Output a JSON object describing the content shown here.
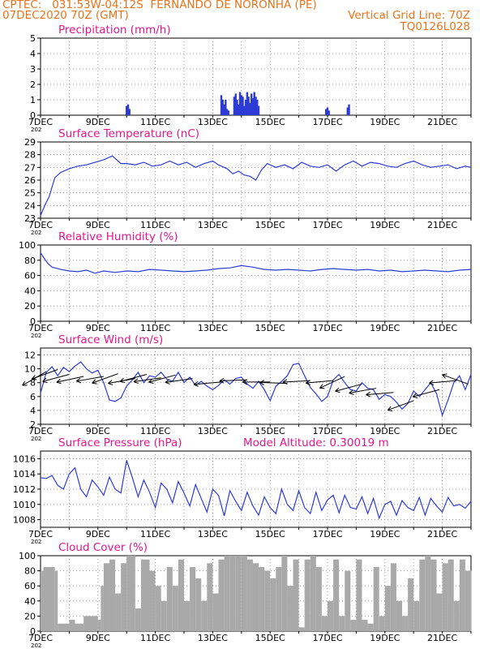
{
  "header": {
    "line1": "CPTEC:   031:53W-04:12S  FERNANDO DE NORONHA (PE)",
    "line2": "07DEC2020 70Z (GMT)",
    "grid_note": "Vertical Grid Line: 70Z",
    "code": "TQ0126L028"
  },
  "x_axis": {
    "start_label": "7DEC",
    "start_sub": "202",
    "day_start": 7,
    "day_end": 22,
    "tick_labels": [
      "9DEC",
      "11DEC",
      "13DEC",
      "15DEC",
      "17DEC",
      "19DEC",
      "21DEC"
    ],
    "tick_days": [
      9,
      11,
      13,
      15,
      17,
      19,
      21
    ]
  },
  "colors": {
    "line": "#2d3bd6",
    "title": "#e3168c",
    "header": "#e8731a",
    "cloud": "#a9a9a9",
    "grid": "#8a8a8a",
    "arrow": "#000000"
  },
  "chart_data": [
    {
      "type": "bar",
      "title": "Precipitation (mm/h)",
      "ylim": [
        0,
        5
      ],
      "yticks": [
        "0",
        "1",
        "2",
        "3",
        "4",
        "5"
      ],
      "x": [
        10.0,
        10.05,
        10.1,
        13.3,
        13.35,
        13.4,
        13.45,
        13.5,
        13.55,
        13.75,
        13.8,
        13.85,
        13.9,
        13.95,
        14.0,
        14.05,
        14.1,
        14.15,
        14.2,
        14.25,
        14.3,
        14.35,
        14.4,
        14.45,
        14.5,
        14.55,
        14.6,
        16.95,
        17.0,
        17.05,
        17.7,
        17.75
      ],
      "values": [
        0.6,
        0.7,
        0.4,
        1.3,
        1.0,
        0.7,
        1.0,
        0.4,
        0.3,
        1.2,
        1.4,
        1.0,
        0.7,
        1.5,
        1.3,
        1.2,
        0.6,
        1.0,
        1.5,
        1.2,
        0.8,
        1.4,
        1.1,
        1.5,
        1.2,
        1.0,
        0.6,
        0.4,
        0.5,
        0.3,
        0.5,
        0.7
      ]
    },
    {
      "type": "line",
      "title": "Surface Temperature (nC)",
      "ylim": [
        23,
        29
      ],
      "yticks": [
        "23",
        "24",
        "25",
        "26",
        "27",
        "28",
        "29"
      ],
      "x": [
        7.0,
        7.15,
        7.3,
        7.5,
        7.7,
        8.0,
        8.3,
        8.6,
        8.9,
        9.2,
        9.5,
        9.8,
        10.0,
        10.3,
        10.6,
        10.9,
        11.2,
        11.5,
        11.8,
        12.1,
        12.4,
        12.7,
        13.0,
        13.2,
        13.5,
        13.7,
        13.9,
        14.1,
        14.3,
        14.5,
        14.7,
        14.9,
        15.2,
        15.5,
        15.8,
        16.1,
        16.4,
        16.7,
        17.0,
        17.3,
        17.6,
        17.9,
        18.2,
        18.5,
        18.8,
        19.1,
        19.4,
        19.7,
        20.0,
        20.3,
        20.6,
        20.9,
        21.2,
        21.5,
        21.8,
        22.0
      ],
      "values": [
        23.2,
        24.0,
        24.7,
        26.2,
        26.6,
        26.9,
        27.1,
        27.2,
        27.4,
        27.6,
        27.9,
        27.3,
        27.3,
        27.2,
        27.4,
        27.1,
        27.2,
        27.5,
        27.2,
        27.4,
        27.0,
        27.3,
        27.5,
        27.2,
        26.9,
        26.5,
        26.7,
        26.4,
        26.3,
        26.0,
        26.8,
        27.3,
        27.0,
        27.2,
        26.9,
        27.4,
        27.1,
        27.0,
        27.2,
        26.7,
        27.2,
        27.5,
        27.1,
        27.4,
        27.3,
        27.1,
        27.0,
        27.3,
        27.5,
        27.2,
        27.0,
        27.1,
        27.2,
        26.9,
        27.1,
        27.0
      ]
    },
    {
      "type": "line",
      "title": "Relative Humidity (%)",
      "ylim": [
        0,
        100
      ],
      "yticks": [
        "0",
        "20",
        "40",
        "60",
        "80",
        "100"
      ],
      "x": [
        7.0,
        7.1,
        7.25,
        7.4,
        7.7,
        8.0,
        8.3,
        8.6,
        8.9,
        9.2,
        9.6,
        10.0,
        10.4,
        10.8,
        11.2,
        11.6,
        12.0,
        12.4,
        12.8,
        13.2,
        13.6,
        14.0,
        14.4,
        14.8,
        15.2,
        15.6,
        16.0,
        16.4,
        16.8,
        17.2,
        17.6,
        18.0,
        18.4,
        18.8,
        19.2,
        19.6,
        20.0,
        20.4,
        20.8,
        21.2,
        21.6,
        22.0
      ],
      "values": [
        90,
        84,
        76,
        71,
        68,
        66,
        65,
        67,
        63,
        66,
        64,
        66,
        65,
        68,
        67,
        66,
        65,
        66,
        67,
        69,
        70,
        73,
        71,
        68,
        67,
        68,
        67,
        66,
        68,
        69,
        68,
        67,
        68,
        66,
        67,
        65,
        66,
        67,
        66,
        65,
        67,
        68
      ]
    },
    {
      "type": "line",
      "title": "Surface Wind (m/s)",
      "ylim": [
        2,
        13
      ],
      "yticks": [
        "2",
        "4",
        "6",
        "8",
        "10",
        "12"
      ],
      "x": [
        7.0,
        7.2,
        7.4,
        7.6,
        7.8,
        8.0,
        8.2,
        8.4,
        8.6,
        8.8,
        9.0,
        9.2,
        9.4,
        9.6,
        9.8,
        10.0,
        10.2,
        10.4,
        10.6,
        10.8,
        11.0,
        11.2,
        11.4,
        11.6,
        11.8,
        12.0,
        12.2,
        12.4,
        12.6,
        12.8,
        13.0,
        13.2,
        13.4,
        13.6,
        13.8,
        14.0,
        14.2,
        14.4,
        14.6,
        14.8,
        15.0,
        15.2,
        15.4,
        15.6,
        15.8,
        16.0,
        16.2,
        16.4,
        16.6,
        16.8,
        17.0,
        17.2,
        17.4,
        17.6,
        17.8,
        18.0,
        18.2,
        18.4,
        18.6,
        18.8,
        19.0,
        19.2,
        19.4,
        19.6,
        19.8,
        20.0,
        20.2,
        20.4,
        20.6,
        20.8,
        21.0,
        21.2,
        21.4,
        21.6,
        21.8,
        22.0
      ],
      "values": [
        6.5,
        9.5,
        10.3,
        9.0,
        10.2,
        9.6,
        10.4,
        11.0,
        10.0,
        9.4,
        9.8,
        8.0,
        5.5,
        5.3,
        5.8,
        7.5,
        8.4,
        9.5,
        8.0,
        9.0,
        8.8,
        9.5,
        8.5,
        8.2,
        9.5,
        8.0,
        8.8,
        7.6,
        8.2,
        7.5,
        7.0,
        7.6,
        8.4,
        7.8,
        8.6,
        8.8,
        7.8,
        7.2,
        8.2,
        7.0,
        5.4,
        7.5,
        8.2,
        9.0,
        10.6,
        10.8,
        9.0,
        7.3,
        6.4,
        5.3,
        6.0,
        8.4,
        9.2,
        8.0,
        7.0,
        6.8,
        8.0,
        7.2,
        7.0,
        5.6,
        6.3,
        6.0,
        5.2,
        4.2,
        5.0,
        6.8,
        6.0,
        7.0,
        8.0,
        6.4,
        3.3,
        5.5,
        8.0,
        9.0,
        7.0,
        9.2
      ]
    },
    {
      "type": "line",
      "title": "Surface Pressure (hPa)",
      "annotation": "Model Altitude: 0.30019 m",
      "ylim": [
        1007,
        1017
      ],
      "yticks": [
        "1008",
        "1010",
        "1012",
        "1014",
        "1016"
      ],
      "x": [
        7.0,
        7.2,
        7.4,
        7.6,
        7.8,
        8.0,
        8.2,
        8.4,
        8.6,
        8.8,
        9.0,
        9.2,
        9.4,
        9.6,
        9.8,
        10.0,
        10.2,
        10.4,
        10.6,
        10.8,
        11.0,
        11.2,
        11.4,
        11.6,
        11.8,
        12.0,
        12.2,
        12.4,
        12.6,
        12.8,
        13.0,
        13.2,
        13.4,
        13.6,
        13.8,
        14.0,
        14.2,
        14.4,
        14.6,
        14.8,
        15.0,
        15.2,
        15.4,
        15.6,
        15.8,
        16.0,
        16.2,
        16.4,
        16.6,
        16.8,
        17.0,
        17.2,
        17.4,
        17.6,
        17.8,
        18.0,
        18.2,
        18.4,
        18.6,
        18.8,
        19.0,
        19.2,
        19.4,
        19.6,
        19.8,
        20.0,
        20.2,
        20.4,
        20.6,
        20.8,
        21.0,
        21.2,
        21.4,
        21.6,
        21.8,
        22.0
      ],
      "values": [
        1013.5,
        1013.4,
        1013.8,
        1012.5,
        1012.0,
        1014.0,
        1014.8,
        1012.0,
        1011.0,
        1013.2,
        1012.3,
        1011.2,
        1013.6,
        1012.0,
        1011.5,
        1015.8,
        1013.5,
        1011.0,
        1013.2,
        1011.6,
        1009.6,
        1012.8,
        1012.0,
        1010.2,
        1013.0,
        1011.5,
        1009.8,
        1012.6,
        1010.8,
        1009.0,
        1012.0,
        1011.2,
        1008.5,
        1011.8,
        1010.4,
        1009.2,
        1011.6,
        1009.8,
        1008.6,
        1011.0,
        1009.6,
        1008.8,
        1012.0,
        1010.0,
        1009.2,
        1011.8,
        1009.6,
        1008.8,
        1011.6,
        1009.2,
        1010.6,
        1011.2,
        1008.9,
        1011.2,
        1009.6,
        1009.4,
        1011.0,
        1008.8,
        1010.8,
        1008.2,
        1010.0,
        1010.4,
        1008.6,
        1010.5,
        1009.6,
        1009.2,
        1010.9,
        1008.6,
        1010.8,
        1009.8,
        1009.0,
        1010.9,
        1009.8,
        1010.0,
        1009.5,
        1010.4
      ]
    },
    {
      "type": "area",
      "title": "Cloud Cover (%)",
      "ylim": [
        0,
        100
      ],
      "yticks": [
        "0",
        "20",
        "40",
        "60",
        "80",
        "100"
      ],
      "x": [
        7.0,
        7.1,
        7.5,
        7.6,
        8.0,
        8.2,
        8.5,
        9.0,
        9.1,
        9.2,
        9.4,
        9.6,
        9.8,
        10.0,
        10.3,
        10.5,
        10.8,
        11.0,
        11.2,
        11.4,
        11.6,
        11.8,
        12.0,
        12.2,
        12.4,
        12.6,
        12.8,
        13.0,
        13.2,
        13.4,
        13.6,
        13.8,
        14.0,
        14.2,
        14.4,
        14.6,
        14.8,
        15.0,
        15.2,
        15.4,
        15.6,
        15.8,
        16.0,
        16.2,
        16.4,
        16.6,
        16.8,
        17.0,
        17.2,
        17.4,
        17.6,
        17.8,
        18.0,
        18.2,
        18.4,
        18.6,
        18.8,
        19.0,
        19.2,
        19.4,
        19.6,
        19.8,
        20.0,
        20.2,
        20.4,
        20.6,
        20.8,
        21.0,
        21.2,
        21.4,
        21.6,
        21.8,
        22.0
      ],
      "values": [
        80,
        85,
        80,
        10,
        15,
        10,
        20,
        15,
        60,
        90,
        95,
        50,
        90,
        100,
        30,
        95,
        80,
        60,
        40,
        85,
        60,
        95,
        40,
        85,
        70,
        40,
        90,
        50,
        95,
        100,
        100,
        100,
        100,
        95,
        90,
        85,
        80,
        70,
        85,
        100,
        60,
        95,
        5,
        95,
        100,
        85,
        20,
        40,
        95,
        20,
        80,
        15,
        95,
        15,
        10,
        85,
        20,
        60,
        90,
        40,
        20,
        70,
        40,
        95,
        100,
        95,
        50,
        90,
        95,
        40,
        95,
        80,
        80
      ]
    }
  ],
  "wind_arrows": [
    {
      "x": 7.2,
      "y": 9.6,
      "dir": 210
    },
    {
      "x": 7.6,
      "y": 9.9,
      "dir": 200
    },
    {
      "x": 8.0,
      "y": 9.2,
      "dir": 195
    },
    {
      "x": 8.5,
      "y": 8.9,
      "dir": 192
    },
    {
      "x": 9.2,
      "y": 8.9,
      "dir": 190
    },
    {
      "x": 9.7,
      "y": 9.3,
      "dir": 200
    },
    {
      "x": 10.3,
      "y": 8.6,
      "dir": 190
    },
    {
      "x": 10.7,
      "y": 9.2,
      "dir": 195
    },
    {
      "x": 11.2,
      "y": 8.7,
      "dir": 188
    },
    {
      "x": 11.7,
      "y": 9.1,
      "dir": 195
    },
    {
      "x": 12.3,
      "y": 8.6,
      "dir": 188
    },
    {
      "x": 13.3,
      "y": 8.1,
      "dir": 185
    },
    {
      "x": 14.2,
      "y": 8.4,
      "dir": 182
    },
    {
      "x": 15.0,
      "y": 8.1,
      "dir": 180
    },
    {
      "x": 15.6,
      "y": 7.9,
      "dir": 178
    },
    {
      "x": 16.4,
      "y": 8.3,
      "dir": 183
    },
    {
      "x": 17.2,
      "y": 8.3,
      "dir": 185
    },
    {
      "x": 17.6,
      "y": 8.9,
      "dir": 205
    },
    {
      "x": 18.2,
      "y": 7.8,
      "dir": 195
    },
    {
      "x": 18.7,
      "y": 7.2,
      "dir": 190
    },
    {
      "x": 19.3,
      "y": 6.6,
      "dir": 185
    },
    {
      "x": 20.0,
      "y": 5.4,
      "dir": 200
    },
    {
      "x": 20.9,
      "y": 7.0,
      "dir": 195
    },
    {
      "x": 21.5,
      "y": 8.3,
      "dir": 185
    },
    {
      "x": 21.9,
      "y": 7.8,
      "dir": 160
    }
  ]
}
